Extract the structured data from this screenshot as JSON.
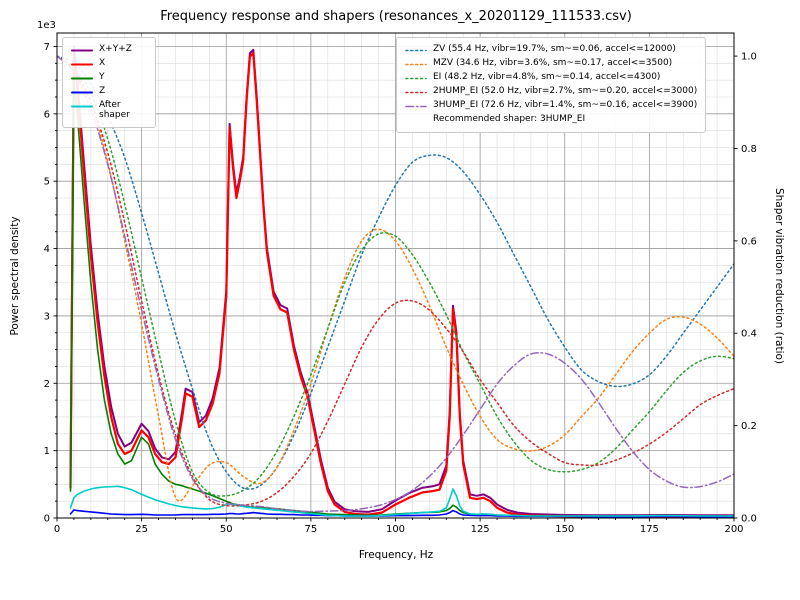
{
  "chart_data": {
    "type": "line",
    "title": "Frequency response and shapers (resonances_x_20201129_111533.csv)",
    "xlabel": "Frequency, Hz",
    "ylabel_left": "Power spectral density",
    "ylabel_right": "Shaper vibration reduction (ratio)",
    "y_offset_text": "1e3",
    "xlim": [
      0,
      200
    ],
    "ylim_left": [
      0,
      7200
    ],
    "ylim_right": [
      0,
      1.05
    ],
    "x_ticks": [
      0,
      25,
      50,
      75,
      100,
      125,
      150,
      175,
      200
    ],
    "x_tick_labels": [
      "0",
      "25",
      "50",
      "75",
      "100",
      "125",
      "150",
      "175",
      "200"
    ],
    "x_minor_step": 5,
    "y_ticks_left": [
      0,
      1000,
      2000,
      3000,
      4000,
      5000,
      6000,
      7000
    ],
    "y_tick_labels_left": [
      "0",
      "1",
      "2",
      "3",
      "4",
      "5",
      "6",
      "7"
    ],
    "y_minor_step_left": 250,
    "y_ticks_right": [
      0,
      0.2,
      0.4,
      0.6,
      0.8,
      1.0
    ],
    "y_tick_labels_right": [
      "0.0",
      "0.2",
      "0.4",
      "0.6",
      "0.8",
      "1.0"
    ],
    "grid": "both",
    "legend_left_position": "upper left",
    "legend_right_position": "upper right",
    "recommended_label": "Recommended shaper: 3HUMP_EI",
    "psd_x": [
      4,
      5,
      6,
      8,
      10,
      12,
      14,
      16,
      18,
      20,
      22,
      25,
      27,
      29,
      31,
      33,
      35,
      37,
      38,
      40,
      42,
      44,
      46,
      48,
      50,
      51,
      52,
      53,
      54,
      55,
      56,
      57,
      58,
      59,
      60,
      61,
      62,
      64,
      66,
      68,
      70,
      72,
      74,
      76,
      78,
      80,
      82,
      85,
      88,
      92,
      96,
      100,
      104,
      108,
      111,
      113,
      115,
      116,
      117,
      118,
      119,
      120,
      122,
      124,
      126,
      128,
      130,
      133,
      136,
      140,
      150,
      160,
      170,
      180,
      190,
      200
    ],
    "psd_series": [
      {
        "name": "x-y-z",
        "label": "X+Y+Z",
        "color": "#800080",
        "dash": "solid",
        "width": 2,
        "y": [
          520,
          7000,
          6500,
          5250,
          4050,
          3050,
          2250,
          1650,
          1250,
          1060,
          1120,
          1400,
          1290,
          1030,
          900,
          870,
          980,
          1580,
          1920,
          1870,
          1420,
          1520,
          1780,
          2230,
          3380,
          5850,
          5260,
          4820,
          5060,
          5360,
          6250,
          6900,
          6950,
          6260,
          5460,
          4660,
          4010,
          3360,
          3160,
          3110,
          2560,
          2160,
          1860,
          1360,
          860,
          450,
          240,
          130,
          100,
          90,
          130,
          260,
          370,
          450,
          470,
          500,
          780,
          1580,
          3150,
          2760,
          1560,
          850,
          350,
          330,
          350,
          300,
          200,
          120,
          80,
          60,
          45,
          40,
          40,
          45,
          40,
          40
        ]
      },
      {
        "name": "x",
        "label": "X",
        "color": "#ff0000",
        "dash": "solid",
        "width": 2.2,
        "y": [
          450,
          6900,
          6400,
          5100,
          3900,
          2900,
          2100,
          1500,
          1100,
          950,
          1000,
          1300,
          1200,
          950,
          830,
          800,
          900,
          1500,
          1850,
          1800,
          1350,
          1450,
          1700,
          2150,
          3300,
          5800,
          5200,
          4750,
          5000,
          5300,
          6200,
          6850,
          6900,
          6200,
          5400,
          4600,
          3950,
          3300,
          3100,
          3050,
          2500,
          2100,
          1800,
          1300,
          800,
          400,
          200,
          90,
          60,
          50,
          80,
          200,
          300,
          380,
          400,
          420,
          700,
          1500,
          3100,
          2700,
          1500,
          800,
          300,
          280,
          300,
          250,
          150,
          80,
          50,
          35,
          25,
          20,
          20,
          25,
          20,
          20
        ]
      },
      {
        "name": "y",
        "label": "Y",
        "color": "#008000",
        "dash": "solid",
        "width": 1.6,
        "y": [
          400,
          6500,
          6000,
          4700,
          3500,
          2500,
          1750,
          1250,
          950,
          800,
          850,
          1200,
          1100,
          800,
          650,
          550,
          500,
          480,
          460,
          430,
          400,
          370,
          330,
          290,
          250,
          230,
          210,
          200,
          190,
          180,
          170,
          165,
          160,
          155,
          150,
          150,
          150,
          140,
          130,
          120,
          110,
          100,
          90,
          80,
          70,
          60,
          55,
          50,
          45,
          40,
          45,
          60,
          70,
          80,
          85,
          90,
          110,
          140,
          190,
          160,
          110,
          80,
          60,
          55,
          60,
          55,
          45,
          40,
          35,
          30,
          30,
          30,
          30,
          35,
          30,
          30
        ]
      },
      {
        "name": "z",
        "label": "Z",
        "color": "#0000ff",
        "dash": "solid",
        "width": 1.6,
        "y": [
          60,
          120,
          110,
          100,
          90,
          80,
          70,
          60,
          55,
          50,
          50,
          55,
          50,
          45,
          45,
          45,
          45,
          50,
          50,
          50,
          50,
          50,
          55,
          55,
          60,
          65,
          65,
          60,
          60,
          65,
          70,
          75,
          80,
          75,
          70,
          65,
          60,
          55,
          55,
          50,
          50,
          45,
          45,
          40,
          40,
          35,
          35,
          30,
          30,
          30,
          30,
          35,
          35,
          40,
          40,
          45,
          60,
          80,
          110,
          90,
          60,
          45,
          40,
          35,
          35,
          35,
          30,
          30,
          25,
          25,
          25,
          20,
          20,
          25,
          20,
          20
        ]
      },
      {
        "name": "after-shaper",
        "label": "After shaper",
        "color": "#00cccc",
        "dash": "solid",
        "width": 1.6,
        "y": [
          150,
          300,
          350,
          400,
          430,
          450,
          460,
          465,
          470,
          450,
          420,
          350,
          310,
          270,
          240,
          210,
          185,
          165,
          160,
          150,
          140,
          135,
          140,
          160,
          200,
          210,
          200,
          190,
          180,
          170,
          160,
          155,
          150,
          145,
          140,
          135,
          130,
          120,
          110,
          100,
          90,
          80,
          70,
          60,
          50,
          40,
          35,
          30,
          30,
          30,
          35,
          50,
          65,
          80,
          90,
          100,
          150,
          280,
          430,
          330,
          180,
          100,
          60,
          55,
          60,
          55,
          45,
          40,
          35,
          30,
          30,
          30,
          30,
          35,
          30,
          30
        ]
      }
    ],
    "shaper_x": [
      0,
      5,
      10,
      15,
      20,
      25,
      30,
      35,
      40,
      45,
      50,
      55,
      60,
      65,
      70,
      75,
      80,
      85,
      90,
      95,
      100,
      105,
      110,
      115,
      120,
      125,
      130,
      135,
      140,
      145,
      150,
      155,
      160,
      165,
      170,
      175,
      180,
      185,
      190,
      195,
      200
    ],
    "shaper_series": [
      {
        "name": "zv",
        "label": "ZV (55.4 Hz, vibr=19.7%, sm~=0.06, accel<=12000)",
        "color": "#1f77b4",
        "dash": "dotted",
        "width": 1.5,
        "y": [
          1.0,
          0.985,
          0.94,
          0.87,
          0.78,
          0.66,
          0.53,
          0.4,
          0.28,
          0.17,
          0.1,
          0.065,
          0.07,
          0.11,
          0.18,
          0.27,
          0.37,
          0.47,
          0.57,
          0.65,
          0.72,
          0.77,
          0.785,
          0.78,
          0.75,
          0.7,
          0.64,
          0.57,
          0.5,
          0.43,
          0.37,
          0.32,
          0.295,
          0.285,
          0.29,
          0.31,
          0.35,
          0.4,
          0.45,
          0.5,
          0.55
        ]
      },
      {
        "name": "mzv",
        "label": "MZV (34.6 Hz, vibr=3.6%, sm~=0.17, accel<=3500)",
        "color": "#ff7f0e",
        "dash": "dotted",
        "width": 1.5,
        "y": [
          1.0,
          0.97,
          0.9,
          0.77,
          0.6,
          0.42,
          0.22,
          0.045,
          0.07,
          0.115,
          0.12,
          0.09,
          0.075,
          0.11,
          0.19,
          0.29,
          0.41,
          0.52,
          0.6,
          0.625,
          0.6,
          0.54,
          0.46,
          0.37,
          0.29,
          0.22,
          0.17,
          0.15,
          0.145,
          0.155,
          0.18,
          0.22,
          0.26,
          0.31,
          0.36,
          0.4,
          0.43,
          0.435,
          0.42,
          0.39,
          0.35
        ]
      },
      {
        "name": "ei",
        "label": "EI (48.2 Hz, vibr=4.8%, sm~=0.14, accel<=4300)",
        "color": "#2ca02c",
        "dash": "dotted",
        "width": 1.5,
        "y": [
          1.0,
          0.975,
          0.92,
          0.82,
          0.68,
          0.52,
          0.36,
          0.21,
          0.1,
          0.055,
          0.048,
          0.06,
          0.09,
          0.145,
          0.22,
          0.31,
          0.41,
          0.51,
          0.58,
          0.615,
          0.61,
          0.57,
          0.51,
          0.44,
          0.36,
          0.29,
          0.22,
          0.165,
          0.125,
          0.105,
          0.1,
          0.105,
          0.12,
          0.15,
          0.19,
          0.23,
          0.275,
          0.315,
          0.34,
          0.35,
          0.345
        ]
      },
      {
        "name": "2hump-ei",
        "label": "2HUMP_EI (52.0 Hz, vibr=2.7%, sm~=0.20, accel<=3000)",
        "color": "#d62728",
        "dash": "dotted",
        "width": 1.5,
        "y": [
          1.0,
          0.97,
          0.9,
          0.79,
          0.64,
          0.47,
          0.31,
          0.18,
          0.09,
          0.04,
          0.027,
          0.028,
          0.035,
          0.055,
          0.09,
          0.14,
          0.21,
          0.29,
          0.37,
          0.43,
          0.465,
          0.47,
          0.45,
          0.41,
          0.36,
          0.3,
          0.25,
          0.2,
          0.165,
          0.14,
          0.12,
          0.115,
          0.115,
          0.125,
          0.14,
          0.16,
          0.185,
          0.215,
          0.245,
          0.265,
          0.28
        ]
      },
      {
        "name": "3hump-ei",
        "label": "3HUMP_EI (72.6 Hz, vibr=1.4%, sm~=0.16, accel<=3900)",
        "color": "#9467bd",
        "dash": "dashdot",
        "width": 1.5,
        "y": [
          1.0,
          0.965,
          0.885,
          0.765,
          0.61,
          0.45,
          0.3,
          0.17,
          0.085,
          0.045,
          0.032,
          0.028,
          0.025,
          0.02,
          0.016,
          0.014,
          0.015,
          0.016,
          0.02,
          0.027,
          0.04,
          0.06,
          0.09,
          0.13,
          0.18,
          0.235,
          0.29,
          0.33,
          0.355,
          0.355,
          0.335,
          0.3,
          0.25,
          0.195,
          0.145,
          0.105,
          0.08,
          0.067,
          0.068,
          0.078,
          0.095
        ]
      }
    ]
  }
}
